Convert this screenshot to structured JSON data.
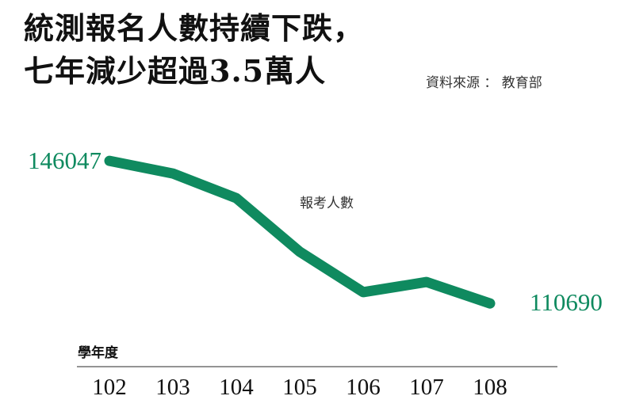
{
  "chart_data": {
    "type": "line",
    "title": [
      "統測報名人數持續下跌，",
      "七年減少超過3.5萬人"
    ],
    "source": "資料來源 ： 教育部",
    "xlabel": "學年度",
    "categories": [
      "102",
      "103",
      "104",
      "105",
      "106",
      "107",
      "108"
    ],
    "series": [
      {
        "name": "報考人數",
        "values": [
          146047,
          142900,
          136800,
          123500,
          113500,
          116000,
          110690
        ],
        "color": "#0f8a5f"
      }
    ],
    "data_labels": [
      "146047",
      "110690"
    ],
    "ylim": [
      108000,
      148000
    ],
    "grid": false,
    "legend": "inline-top-center"
  }
}
